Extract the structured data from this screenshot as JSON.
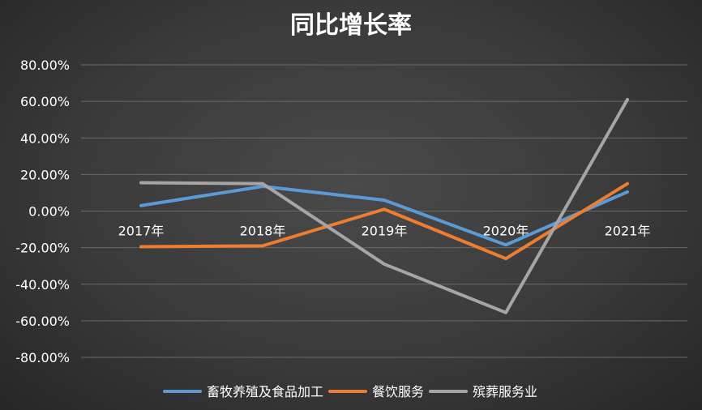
{
  "chart_data": {
    "type": "line",
    "title": "同比增长率",
    "categories": [
      "2017年",
      "2018年",
      "2019年",
      "2020年",
      "2021年"
    ],
    "y_ticks": [
      "80.00%",
      "60.00%",
      "40.00%",
      "20.00%",
      "0.00%",
      "-20.00%",
      "-40.00%",
      "-60.00%",
      "-80.00%"
    ],
    "ylim": [
      -80,
      80
    ],
    "y_unit": "%",
    "grid": true,
    "legend_position": "bottom",
    "series": [
      {
        "name": "畜牧养殖及食品加工",
        "color": "#5b9bd5",
        "values": [
          3,
          13.5,
          6,
          -18.5,
          10.5
        ]
      },
      {
        "name": "餐饮服务",
        "color": "#ed7d31",
        "values": [
          -19.5,
          -19,
          1,
          -26,
          15
        ]
      },
      {
        "name": "殡葬服务业",
        "color": "#a5a5a5",
        "values": [
          15.5,
          15,
          -29,
          -55.5,
          61
        ]
      }
    ]
  }
}
